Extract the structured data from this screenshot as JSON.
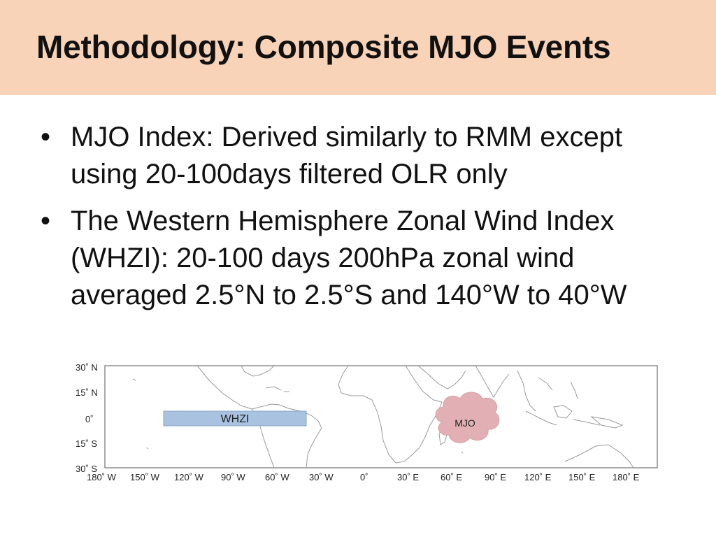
{
  "title": "Methodology: Composite MJO Events",
  "bullets": [
    "MJO Index: Derived similarly to RMM except using 20-100days filtered OLR only",
    "The Western Hemisphere Zonal Wind Index (WHZI): 20-100 days 200hPa zonal wind averaged 2.5°N to 2.5°S and 140°W to 40°W"
  ],
  "map": {
    "lat_labels": [
      "30˚ N",
      "15˚ N",
      "0˚",
      "15˚ S",
      "30˚ S"
    ],
    "lon_labels": [
      "180˚ W",
      "150˚ W",
      "120˚ W",
      "90˚ W",
      "60˚ W",
      "30˚ W",
      "0˚",
      "30˚ E",
      "60˚ E",
      "90˚ E",
      "120˚ E",
      "150˚ E",
      "180˚ E"
    ],
    "whzi_label": "WHZI",
    "mjo_label": "MJO",
    "whzi_color": "#a8c2e0",
    "mjo_color": "#e2b0b4"
  }
}
